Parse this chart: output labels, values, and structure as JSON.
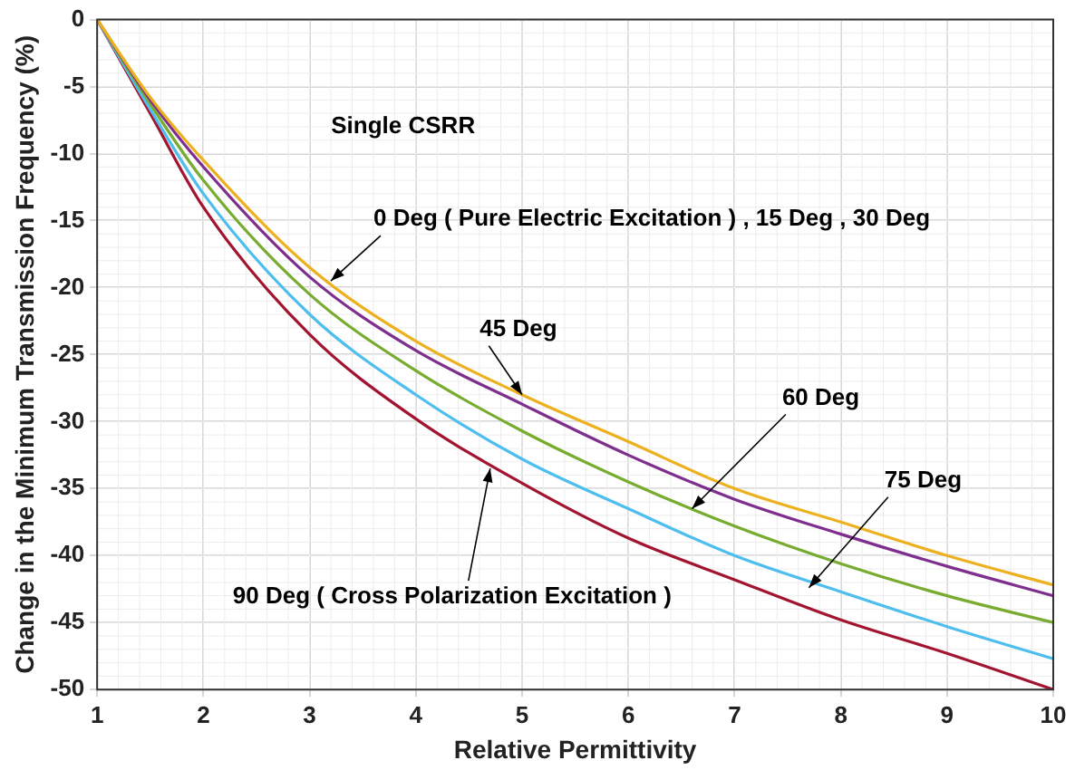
{
  "chart_data": {
    "type": "line",
    "xlabel": "Relative Permittivity",
    "ylabel": "Change in the Minimum Transmission Frequency (%)",
    "x": [
      1,
      1.5,
      2,
      3,
      4,
      5,
      6,
      7,
      8,
      9,
      10
    ],
    "series": [
      {
        "color": "#edb120",
        "values": [
          0,
          -5.8,
          -10.5,
          -18.5,
          -24,
          -28,
          -31.5,
          -35,
          -37.5,
          -40,
          -42.2
        ]
      },
      {
        "color": "#7e2f8e",
        "values": [
          0,
          -6,
          -11,
          -19.2,
          -24.7,
          -28.7,
          -32.5,
          -35.8,
          -38.4,
          -40.8,
          -43
        ]
      },
      {
        "color": "#77ac30",
        "values": [
          0,
          -6.3,
          -12,
          -20.5,
          -26.2,
          -30.7,
          -34.5,
          -37.8,
          -40.6,
          -43,
          -45
        ]
      },
      {
        "color": "#4dbeee",
        "values": [
          0,
          -6.7,
          -13,
          -22,
          -28,
          -32.8,
          -36.5,
          -40,
          -42.7,
          -45.3,
          -47.7
        ]
      },
      {
        "color": "#a2142f",
        "values": [
          0,
          -7,
          -14,
          -23.5,
          -29.8,
          -34.6,
          -38.7,
          -41.8,
          -44.8,
          -47.3,
          -50
        ]
      }
    ],
    "xlim": [
      1,
      10
    ],
    "xticks": [
      1,
      2,
      3,
      4,
      5,
      6,
      7,
      8,
      9,
      10
    ],
    "ylim": [
      -50,
      0
    ],
    "yticks": [
      -50,
      -45,
      -40,
      -35,
      -30,
      -25,
      -20,
      -15,
      -10,
      -5,
      0
    ],
    "grid": true,
    "legend": false,
    "marker": "none",
    "line_style": "solid",
    "annotations": [
      "Single CSRR",
      {
        "text": "0 Deg ( Pure Electric Excitation ) , 15 Deg , 30 Deg",
        "x": 3.2,
        "y": -19.5
      },
      {
        "text": "45 Deg",
        "x": 5,
        "y": -28
      },
      {
        "text": "60 Deg",
        "x": 6.6,
        "y": -36.5
      },
      {
        "text": "75 Deg",
        "x": 7.7,
        "y": -42.4
      },
      {
        "text": "90 Deg ( Cross Polarization Excitation )",
        "x": 4.7,
        "y": -33.5
      }
    ]
  }
}
